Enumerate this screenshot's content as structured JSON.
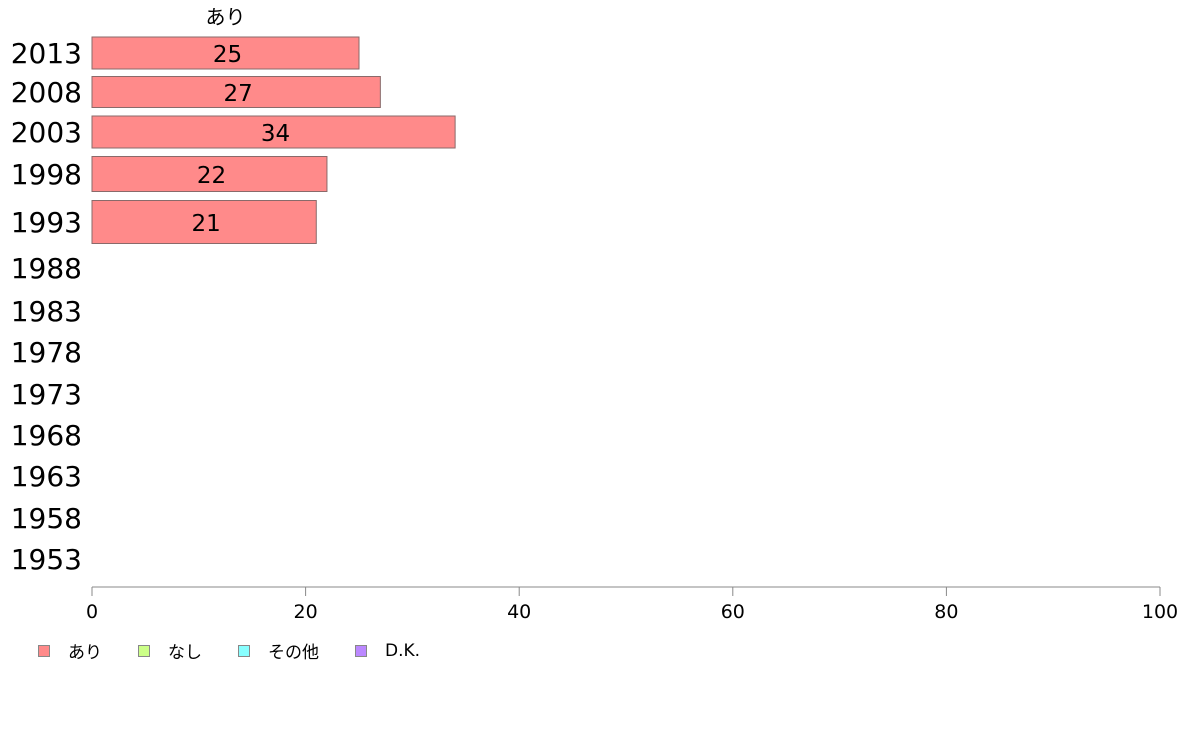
{
  "chart_data": {
    "type": "bar",
    "orientation": "horizontal",
    "categories": [
      "2013",
      "2008",
      "2003",
      "1998",
      "1993",
      "1988",
      "1983",
      "1978",
      "1973",
      "1968",
      "1963",
      "1958",
      "1953"
    ],
    "series": [
      {
        "name": "あり",
        "color": "#ff8a8a",
        "values": [
          25,
          27,
          34,
          22,
          21,
          null,
          null,
          null,
          null,
          null,
          null,
          null,
          null
        ]
      }
    ],
    "series_header": "あり",
    "x_ticks": [
      0,
      20,
      40,
      60,
      80,
      100
    ],
    "xlim": [
      0,
      100
    ],
    "grid": false,
    "legend_position": "bottom-left"
  },
  "legend": [
    {
      "label": "あり",
      "color": "#ff8a8a"
    },
    {
      "label": "なし",
      "color": "#ccff88"
    },
    {
      "label": "その他",
      "color": "#88ffff"
    },
    {
      "label": "D.K.",
      "color": "#bb88ff"
    }
  ]
}
